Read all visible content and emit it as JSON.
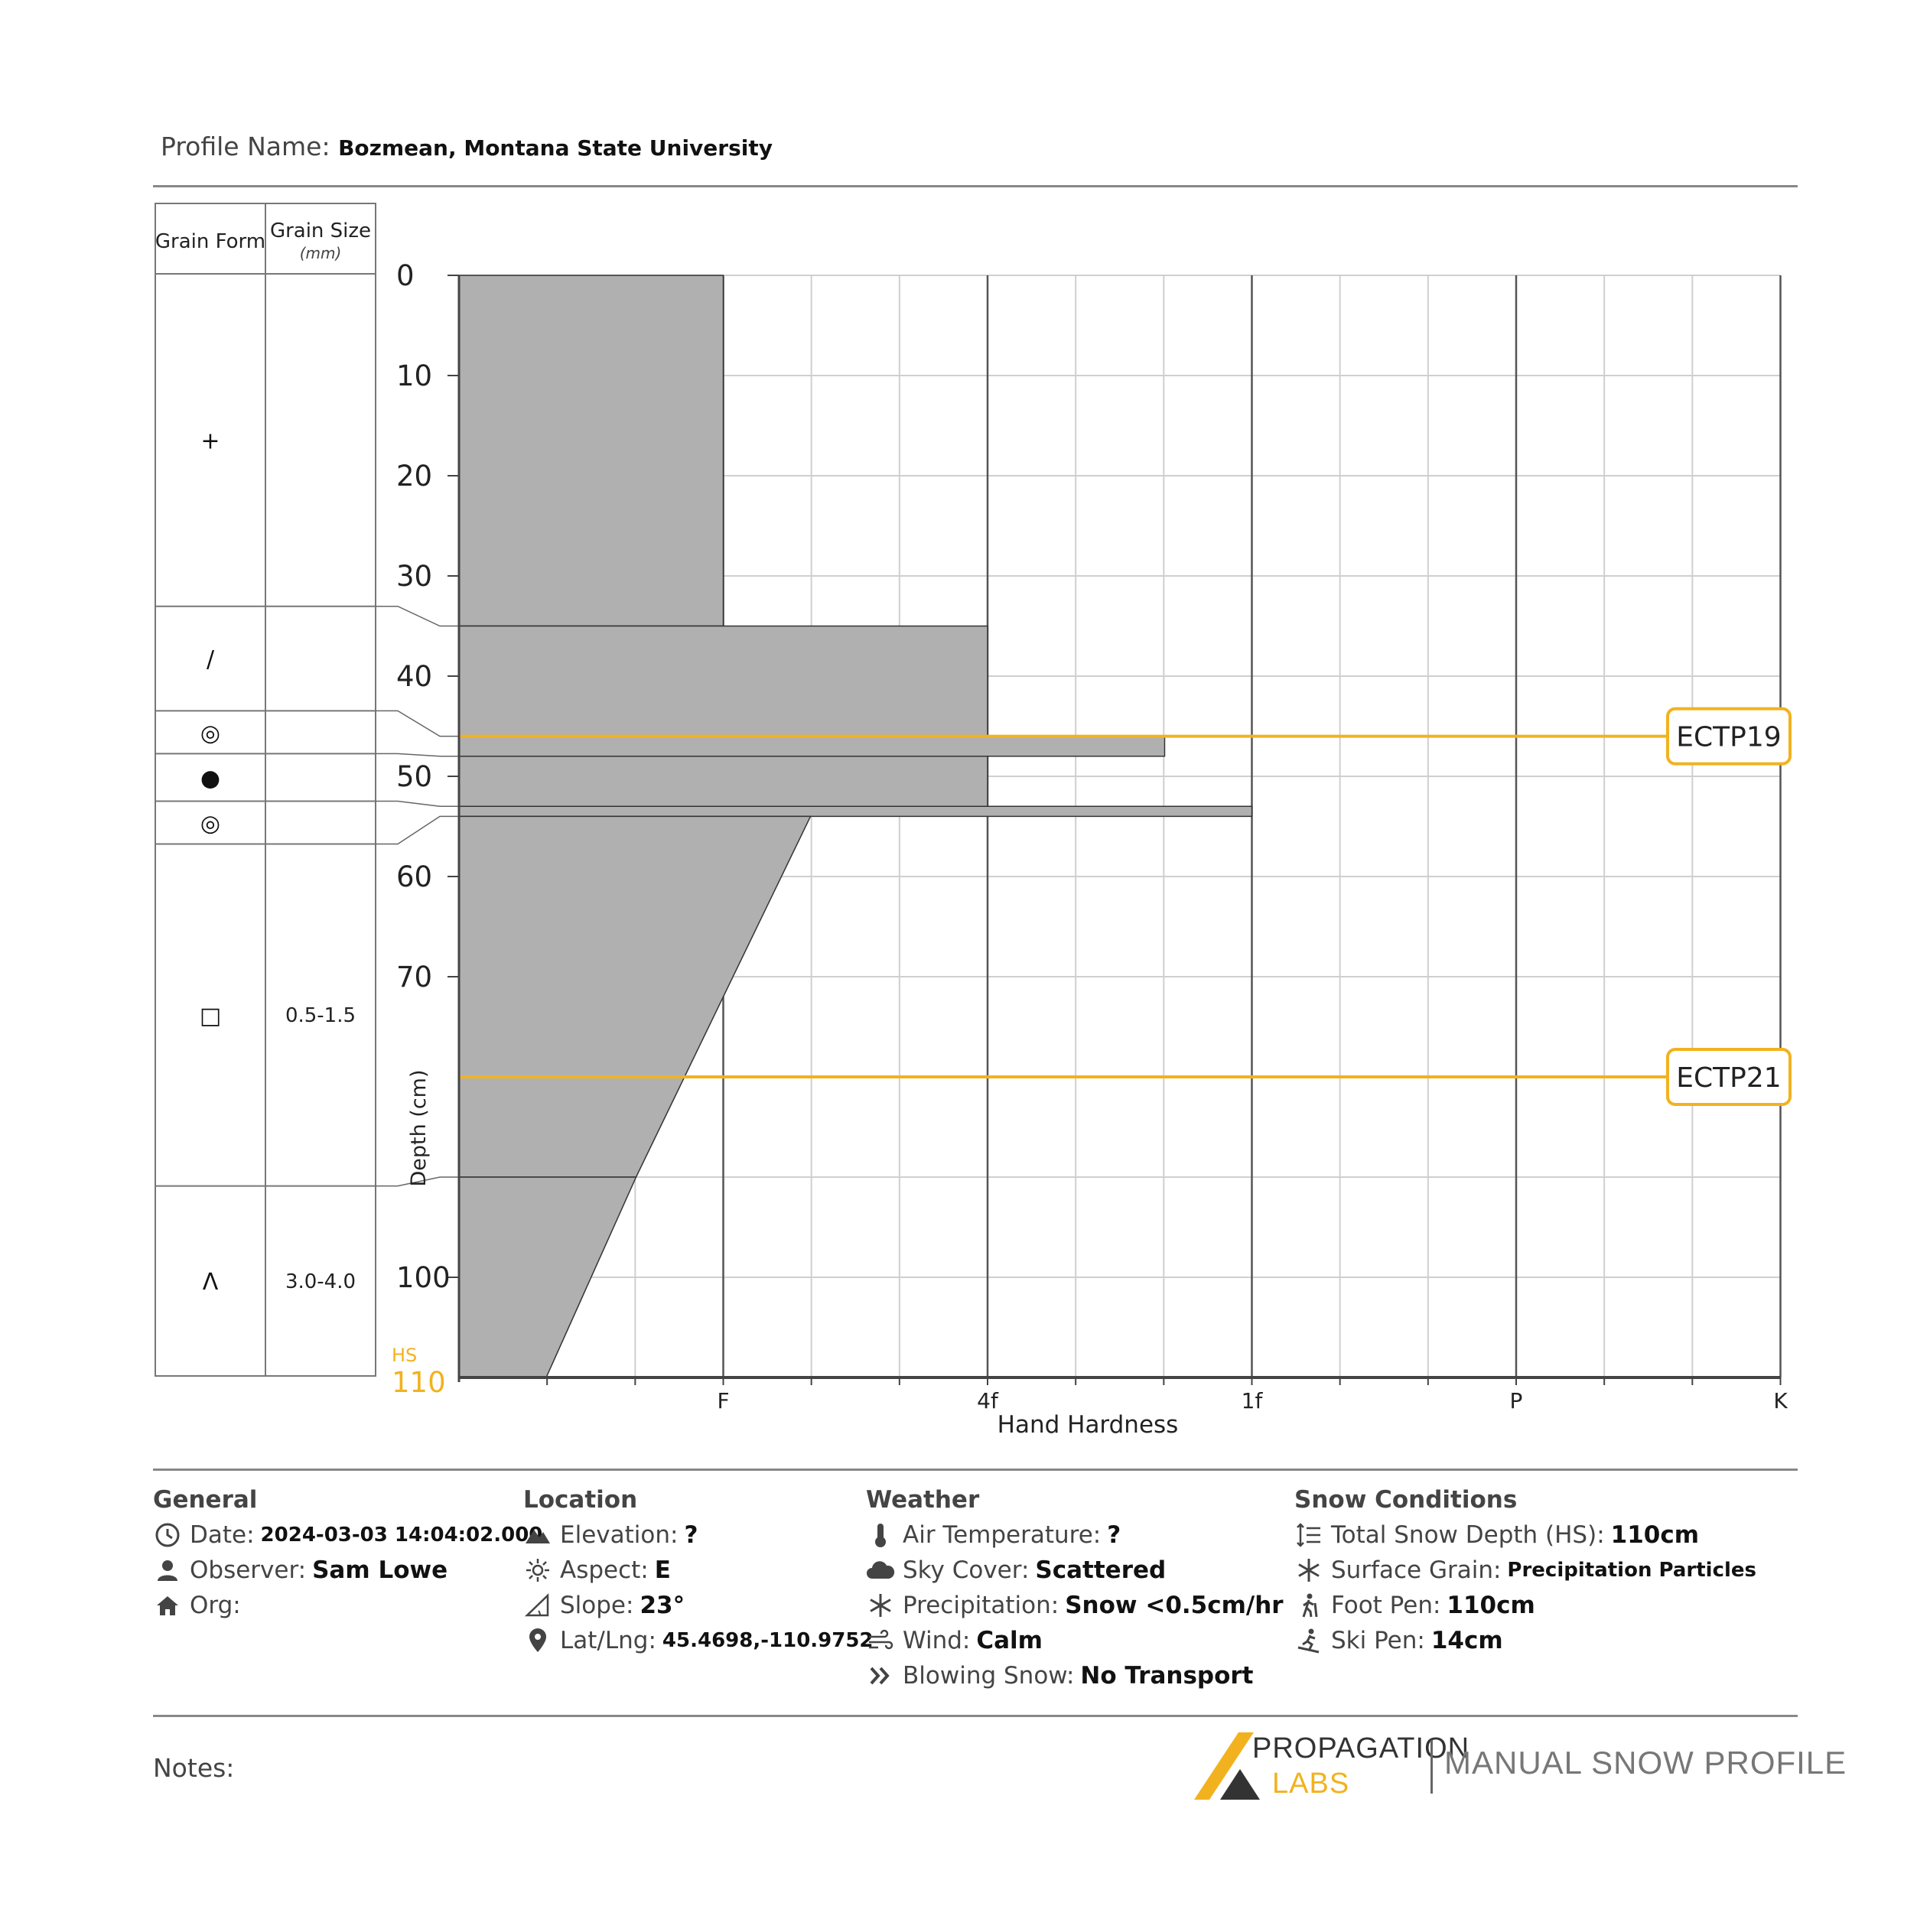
{
  "profile": {
    "label": "Profile Name:",
    "name": "Bozmean, Montana State University"
  },
  "table_headers": {
    "grain_form": "Grain Form",
    "grain_size": "Grain Size",
    "grain_size_unit": "(mm)"
  },
  "chart_data": {
    "type": "snow-profile",
    "ylabel": "Depth (cm)",
    "xlabel": "Hand Hardness",
    "yticks": [
      0,
      10,
      20,
      30,
      40,
      50,
      60,
      70,
      100
    ],
    "hs_label": "HS",
    "hs_value": "110",
    "hardness_scale": [
      "F",
      "4f",
      "1f",
      "P",
      "K"
    ],
    "ylim": [
      0,
      110
    ],
    "layers": [
      {
        "top": 0,
        "bottom": 35,
        "hardness_top": 1.0,
        "hardness_bottom": 1.0,
        "grain_form": "+",
        "grain_size": ""
      },
      {
        "top": 35,
        "bottom": 46,
        "hardness_top": 2.0,
        "hardness_bottom": 2.0,
        "grain_form": "/",
        "grain_size": ""
      },
      {
        "top": 46,
        "bottom": 48,
        "hardness_top": 2.67,
        "hardness_bottom": 2.67,
        "grain_form": "◎",
        "grain_size": ""
      },
      {
        "top": 48,
        "bottom": 53,
        "hardness_top": 2.0,
        "hardness_bottom": 2.0,
        "grain_form": "●",
        "grain_size": ""
      },
      {
        "top": 53,
        "bottom": 54,
        "hardness_top": 3.0,
        "hardness_bottom": 3.0,
        "grain_form": "◎",
        "grain_size": ""
      },
      {
        "top": 54,
        "bottom": 90,
        "hardness_top": 1.33,
        "hardness_bottom": 0.67,
        "grain_form": "□",
        "grain_size": "0.5-1.5"
      },
      {
        "top": 90,
        "bottom": 110,
        "hardness_top": 0.67,
        "hardness_bottom": 0.33,
        "grain_form": "Λ",
        "grain_size": "3.0-4.0"
      }
    ],
    "tests": [
      {
        "depth": 46,
        "label": "ECTP19"
      },
      {
        "depth": 80,
        "label": "ECTP21"
      }
    ],
    "colors": {
      "layer_fill": "#b0b0b0",
      "test_line": "#f2b21f",
      "hs": "#f2b21f"
    }
  },
  "general": {
    "title": "General",
    "date_label": "Date:",
    "date": "2024-03-03 14:04:02.000",
    "observer_label": "Observer:",
    "observer": "Sam Lowe",
    "org_label": "Org:",
    "org": ""
  },
  "location": {
    "title": "Location",
    "elevation_label": "Elevation:",
    "elevation": "?",
    "aspect_label": "Aspect:",
    "aspect": "E",
    "slope_label": "Slope:",
    "slope": "23°",
    "latlng_label": "Lat/Lng:",
    "latlng": "45.4698,-110.9752"
  },
  "weather": {
    "title": "Weather",
    "air_temp_label": "Air Temperature:",
    "air_temp": "?",
    "sky_label": "Sky Cover:",
    "sky": "Scattered",
    "precip_label": "Precipitation:",
    "precip": "Snow <0.5cm/hr",
    "wind_label": "Wind:",
    "wind": "Calm",
    "blowing_label": "Blowing Snow:",
    "blowing": "No Transport"
  },
  "snow_conditions": {
    "title": "Snow Conditions",
    "hs_label": "Total Snow Depth (HS):",
    "hs": "110cm",
    "surface_label": "Surface Grain:",
    "surface": "Precipitation Particles",
    "foot_label": "Foot Pen:",
    "foot": "110cm",
    "ski_label": "Ski Pen:",
    "ski": "14cm"
  },
  "notes": {
    "label": "Notes:"
  },
  "logo": {
    "top": "PROPAGATION",
    "bottom": "LABS",
    "product": "MANUAL SNOW PROFILE"
  }
}
